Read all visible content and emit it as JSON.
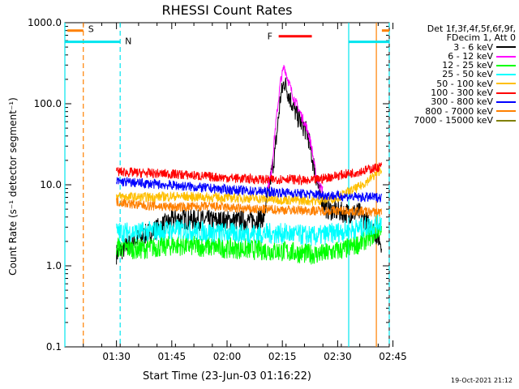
{
  "chart_data": {
    "type": "line",
    "title": "RHESSI Count Rates",
    "xlabel": "Start Time (23-Jun-03 01:16:22)",
    "ylabel": "Count Rate (s⁻¹ detector segment⁻¹)",
    "yscale": "log",
    "ylim": [
      0.1,
      1000
    ],
    "y_ticks": [
      "0.1",
      "1.0",
      "10.0",
      "100.0",
      "1000.0"
    ],
    "xlim_minutes": [
      0,
      88
    ],
    "x_ticks": [
      {
        "t": 14,
        "label": "01:30"
      },
      {
        "t": 29,
        "label": "01:45"
      },
      {
        "t": 44,
        "label": "02:00"
      },
      {
        "t": 59,
        "label": "02:15"
      },
      {
        "t": 74,
        "label": "02:30"
      },
      {
        "t": 89,
        "label": "02:45"
      }
    ],
    "legend_header": "Det 1f,3f,4f,5f,6f,9f,\nFDecim 1, Att 0",
    "data_start_min": 14,
    "data_end_min": 86,
    "series": [
      {
        "name": "3 - 6 keV",
        "color": "#000000",
        "points": [
          [
            14,
            1.4
          ],
          [
            20,
            2.2
          ],
          [
            30,
            3.8
          ],
          [
            40,
            3.6
          ],
          [
            50,
            3.6
          ],
          [
            54,
            4.0
          ],
          [
            57,
            25
          ],
          [
            58.5,
            120
          ],
          [
            59.5,
            190
          ],
          [
            61,
            120
          ],
          [
            63,
            70
          ],
          [
            65,
            50
          ],
          [
            66,
            40
          ],
          [
            67,
            22
          ],
          [
            68,
            14
          ],
          [
            69,
            8
          ],
          [
            71,
            5
          ],
          [
            76,
            4.5
          ],
          [
            80,
            4.5
          ],
          [
            84,
            2.6
          ],
          [
            86,
            1.9
          ]
        ]
      },
      {
        "name": "6 - 12 keV",
        "color": "#ff00ff",
        "points": [
          [
            55,
            9
          ],
          [
            56,
            14
          ],
          [
            57,
            45
          ],
          [
            58.5,
            190
          ],
          [
            59.5,
            290
          ],
          [
            60.5,
            200
          ],
          [
            62,
            120
          ],
          [
            64,
            75
          ],
          [
            66,
            45
          ],
          [
            67,
            28
          ],
          [
            68,
            14
          ],
          [
            69,
            10
          ],
          [
            70,
            8.5
          ]
        ]
      },
      {
        "name": "12 - 25 keV",
        "color": "#00ff00",
        "points": [
          [
            14,
            1.7
          ],
          [
            20,
            1.6
          ],
          [
            30,
            1.8
          ],
          [
            40,
            1.7
          ],
          [
            50,
            1.6
          ],
          [
            60,
            1.5
          ],
          [
            66,
            1.4
          ],
          [
            70,
            1.4
          ],
          [
            76,
            1.6
          ],
          [
            80,
            1.9
          ],
          [
            84,
            2.5
          ],
          [
            86,
            3.2
          ]
        ]
      },
      {
        "name": "25 - 50 keV",
        "color": "#00ffff",
        "points": [
          [
            14,
            2.6
          ],
          [
            20,
            2.6
          ],
          [
            30,
            2.8
          ],
          [
            40,
            2.6
          ],
          [
            50,
            2.5
          ],
          [
            60,
            2.5
          ],
          [
            68,
            2.3
          ],
          [
            74,
            2.6
          ],
          [
            80,
            2.9
          ],
          [
            84,
            3.2
          ],
          [
            86,
            3.6
          ]
        ]
      },
      {
        "name": "50 - 100 keV",
        "color": "#ffbf00",
        "points": [
          [
            14,
            7.2
          ],
          [
            20,
            7.0
          ],
          [
            30,
            7.2
          ],
          [
            40,
            7.0
          ],
          [
            50,
            6.8
          ],
          [
            60,
            6.5
          ],
          [
            68,
            6.3
          ],
          [
            74,
            7.0
          ],
          [
            80,
            9.5
          ],
          [
            84,
            13
          ],
          [
            86,
            16
          ]
        ]
      },
      {
        "name": "100 - 300 keV",
        "color": "#ff0000",
        "points": [
          [
            14,
            14.5
          ],
          [
            20,
            14
          ],
          [
            30,
            13.5
          ],
          [
            40,
            12.5
          ],
          [
            50,
            11.8
          ],
          [
            56,
            11.5
          ],
          [
            60,
            12
          ],
          [
            66,
            11
          ],
          [
            72,
            12.5
          ],
          [
            78,
            14
          ],
          [
            84,
            16
          ],
          [
            86,
            17
          ]
        ]
      },
      {
        "name": "300 - 800 keV",
        "color": "#0000ff",
        "points": [
          [
            14,
            11
          ],
          [
            20,
            10.5
          ],
          [
            30,
            9.8
          ],
          [
            40,
            9.0
          ],
          [
            50,
            8.4
          ],
          [
            60,
            8.0
          ],
          [
            68,
            7.6
          ],
          [
            74,
            7.3
          ],
          [
            80,
            7.0
          ],
          [
            84,
            7.0
          ],
          [
            86,
            7.0
          ]
        ]
      },
      {
        "name": "800 - 7000 keV",
        "color": "#ff8000",
        "points": [
          [
            14,
            6.2
          ],
          [
            20,
            5.6
          ],
          [
            30,
            5.3
          ],
          [
            40,
            5.4
          ],
          [
            50,
            5.0
          ],
          [
            60,
            4.9
          ],
          [
            68,
            4.8
          ],
          [
            74,
            4.8
          ],
          [
            80,
            4.7
          ],
          [
            84,
            4.6
          ],
          [
            86,
            4.6
          ]
        ]
      },
      {
        "name": "7000 - 15000 keV",
        "color": "#808000",
        "points": []
      }
    ],
    "annotations": [
      {
        "label": "S",
        "color": "#ff8000",
        "t_start": 5,
        "t_end": 4.5,
        "y": 800,
        "bar_left": 0.7,
        "bar_right": 5,
        "end_t": 86,
        "end_bar_right": 88
      },
      {
        "label": "N",
        "color": "#00e5ee",
        "y": 580,
        "t_start": 0,
        "t_end": 15
      },
      {
        "label": "F",
        "color": "#ff0000",
        "y": 680,
        "t_start": 58,
        "t_end": 67
      }
    ],
    "vertical_lines": [
      {
        "t": 0,
        "color": "#00e5ee",
        "style": "solid"
      },
      {
        "t": 5,
        "color": "#ff8000",
        "style": "dashed"
      },
      {
        "t": 15,
        "color": "#00e5ee",
        "style": "dashed"
      },
      {
        "t": 77,
        "color": "#00e5ee",
        "style": "solid"
      },
      {
        "t": 84.5,
        "color": "#ff8000",
        "style": "solid"
      },
      {
        "t": 88,
        "color": "#00e5ee",
        "style": "dashed"
      }
    ]
  },
  "footer": {
    "timestamp": "19-Oct-2021 21:12"
  }
}
